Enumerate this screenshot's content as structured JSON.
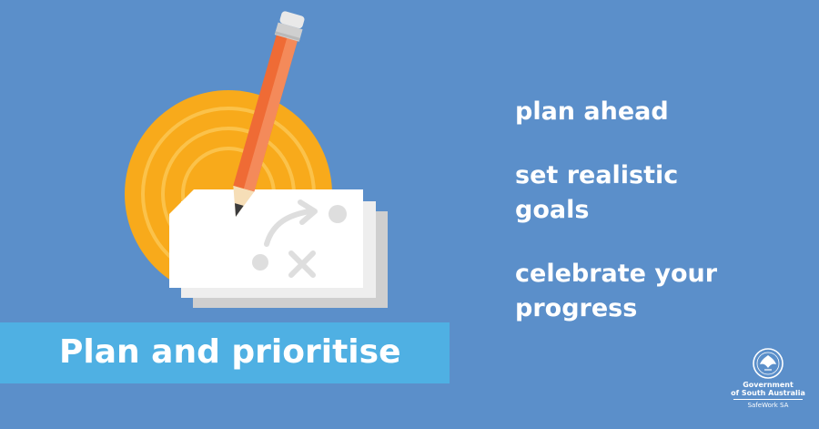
{
  "banner": {
    "title": "Plan and prioritise"
  },
  "tips": [
    {
      "text": "plan ahead"
    },
    {
      "text": "set realistic goals"
    },
    {
      "text": "celebrate your progress"
    }
  ],
  "logo": {
    "line1": "Government",
    "line2": "of South Australia",
    "sub": "SafeWork SA"
  },
  "icons": [
    "target-icon",
    "pencil-icon",
    "plan-cards-icon",
    "government-crest-icon"
  ],
  "colors": {
    "background": "#5b8fca",
    "banner": "#4fb0e3",
    "target": "#f8aa1b",
    "pencil": "#ef6b35",
    "card": "#ffffff",
    "card_shadow": "#cfcfcf"
  }
}
